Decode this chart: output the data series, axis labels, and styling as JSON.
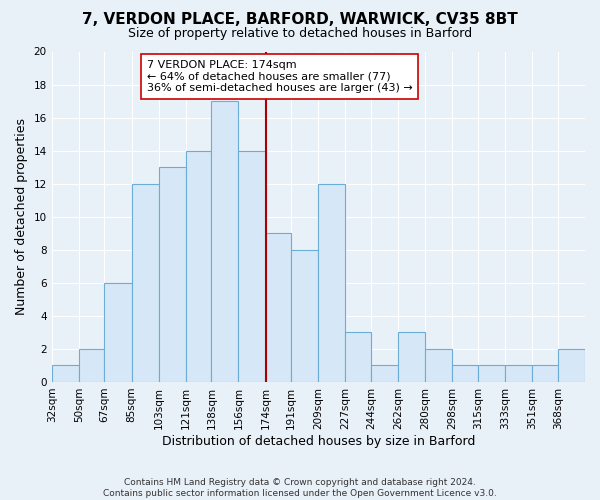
{
  "title": "7, VERDON PLACE, BARFORD, WARWICK, CV35 8BT",
  "subtitle": "Size of property relative to detached houses in Barford",
  "xlabel": "Distribution of detached houses by size in Barford",
  "ylabel": "Number of detached properties",
  "footer_line1": "Contains HM Land Registry data © Crown copyright and database right 2024.",
  "footer_line2": "Contains public sector information licensed under the Open Government Licence v3.0.",
  "annotation_title": "7 VERDON PLACE: 174sqm",
  "annotation_line1": "← 64% of detached houses are smaller (77)",
  "annotation_line2": "36% of semi-detached houses are larger (43) →",
  "property_size": 174,
  "bar_color": "#d6e8f7",
  "bar_edge_color": "#6aaed6",
  "ref_line_color": "#aa0000",
  "annotation_box_edge": "#cc0000",
  "background_color": "#e8f0f8",
  "plot_bg_color": "#e8f0f8",
  "grid_color": "#ffffff",
  "bins": [
    32,
    50,
    67,
    85,
    103,
    121,
    138,
    156,
    174,
    191,
    209,
    227,
    244,
    262,
    280,
    298,
    315,
    333,
    351,
    368,
    386
  ],
  "counts": [
    1,
    2,
    6,
    12,
    13,
    14,
    17,
    14,
    9,
    8,
    12,
    3,
    1,
    3,
    2,
    1,
    1,
    1,
    1,
    2
  ],
  "ylim": [
    0,
    20
  ],
  "yticks": [
    0,
    2,
    4,
    6,
    8,
    10,
    12,
    14,
    16,
    18,
    20
  ],
  "tick_label_fontsize": 7.5,
  "axis_label_fontsize": 9,
  "title_fontsize": 11,
  "subtitle_fontsize": 9,
  "annotation_fontsize": 8,
  "footer_fontsize": 6.5
}
